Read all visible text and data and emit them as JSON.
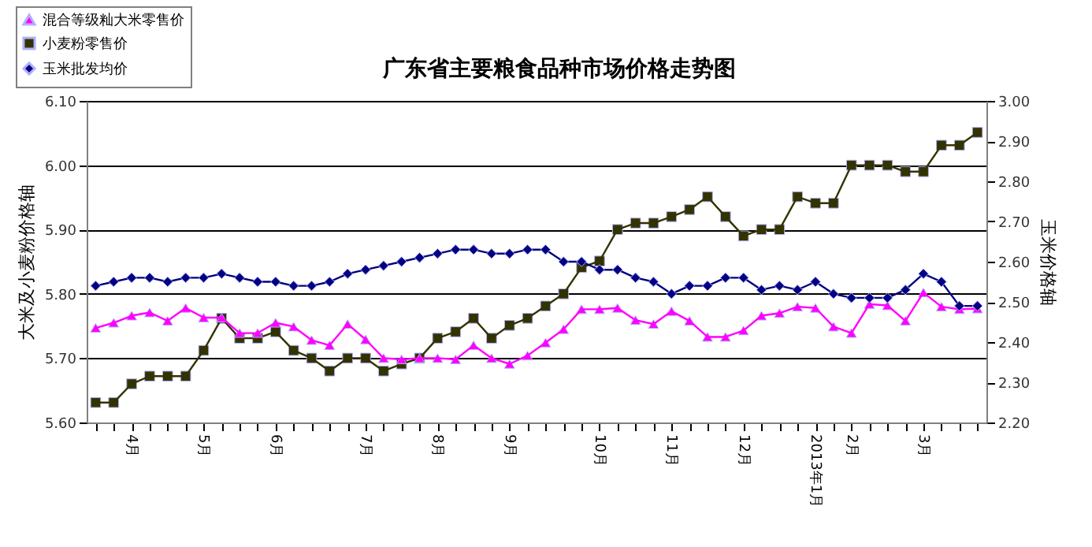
{
  "chart_data": {
    "type": "line",
    "title": "广东省主要粮食品种市场价格走势图",
    "ylabel": "大米及小麦粉价格轴",
    "y2label": "玉米价格轴",
    "categories": [
      null,
      null,
      "4月",
      null,
      null,
      null,
      "5月",
      null,
      null,
      null,
      "6月",
      null,
      null,
      null,
      null,
      "7月",
      null,
      null,
      null,
      "8月",
      null,
      null,
      null,
      "9月",
      null,
      null,
      null,
      null,
      "10月",
      null,
      null,
      null,
      "11月",
      null,
      null,
      null,
      "12月",
      null,
      null,
      null,
      "2013年1月",
      null,
      "2月",
      null,
      null,
      null,
      "3月",
      null,
      null,
      null
    ],
    "series": [
      {
        "name": "混合等级籼大米零售价",
        "color": "#ff00ff",
        "marker": "triangle",
        "values": [
          5.747,
          5.755,
          5.766,
          5.771,
          5.758,
          5.778,
          5.763,
          5.763,
          5.739,
          5.739,
          5.755,
          5.749,
          5.728,
          5.72,
          5.753,
          5.729,
          5.7,
          5.698,
          5.7,
          5.7,
          5.698,
          5.72,
          5.7,
          5.691,
          5.704,
          5.724,
          5.745,
          5.776,
          5.776,
          5.778,
          5.759,
          5.753,
          5.773,
          5.758,
          5.733,
          5.733,
          5.743,
          5.766,
          5.77,
          5.78,
          5.778,
          5.749,
          5.739,
          5.784,
          5.782,
          5.758,
          5.802,
          5.78,
          5.776,
          5.777
        ]
      },
      {
        "name": "小麦粉零售价",
        "color": "#333300",
        "marker": "square",
        "values": [
          5.631,
          5.631,
          5.66,
          5.672,
          5.672,
          5.672,
          5.712,
          5.762,
          5.731,
          5.731,
          5.741,
          5.712,
          5.7,
          5.68,
          5.7,
          5.7,
          5.68,
          5.691,
          5.7,
          5.731,
          5.741,
          5.762,
          5.731,
          5.751,
          5.762,
          5.781,
          5.8,
          5.841,
          5.851,
          5.9,
          5.91,
          5.91,
          5.92,
          5.931,
          5.951,
          5.92,
          5.89,
          5.9,
          5.9,
          5.951,
          5.941,
          5.941,
          6.0,
          6.0,
          6.0,
          5.99,
          5.99,
          6.031,
          6.031,
          6.051
        ]
      },
      {
        "name": "玉米批发均价",
        "color": "#000080",
        "marker": "diamond",
        "axis": "y2",
        "values": [
          2.54,
          2.55,
          2.56,
          2.56,
          2.55,
          2.56,
          2.56,
          2.57,
          2.56,
          2.55,
          2.55,
          2.54,
          2.54,
          2.55,
          2.57,
          2.58,
          2.59,
          2.6,
          2.61,
          2.62,
          2.63,
          2.63,
          2.62,
          2.62,
          2.63,
          2.63,
          2.6,
          2.6,
          2.58,
          2.58,
          2.56,
          2.55,
          2.52,
          2.54,
          2.54,
          2.56,
          2.56,
          2.53,
          2.54,
          2.53,
          2.55,
          2.52,
          2.51,
          2.51,
          2.51,
          2.53,
          2.57,
          2.55,
          2.49,
          2.49
        ]
      }
    ],
    "ylim": [
      5.6,
      6.1
    ],
    "yticks": [
      {
        "value": 5.6,
        "label": "5.60"
      },
      {
        "value": 5.7,
        "label": "5.70"
      },
      {
        "value": 5.8,
        "label": "5.80"
      },
      {
        "value": 5.9,
        "label": "5.90"
      },
      {
        "value": 6.0,
        "label": "6.00"
      },
      {
        "value": 6.1,
        "label": "6.10"
      }
    ],
    "y2lim": [
      2.2,
      3.0
    ],
    "y2ticks": [
      {
        "value": 2.2,
        "label": "2.20"
      },
      {
        "value": 2.3,
        "label": "2.30"
      },
      {
        "value": 2.4,
        "label": "2.40"
      },
      {
        "value": 2.5,
        "label": "2.50"
      },
      {
        "value": 2.6,
        "label": "2.60"
      },
      {
        "value": 2.7,
        "label": "2.70"
      },
      {
        "value": 2.8,
        "label": "2.80"
      },
      {
        "value": 2.9,
        "label": "2.90"
      },
      {
        "value": 3.0,
        "label": "3.00"
      }
    ],
    "grid": "y",
    "legend": "top left",
    "line_style": "solid"
  }
}
